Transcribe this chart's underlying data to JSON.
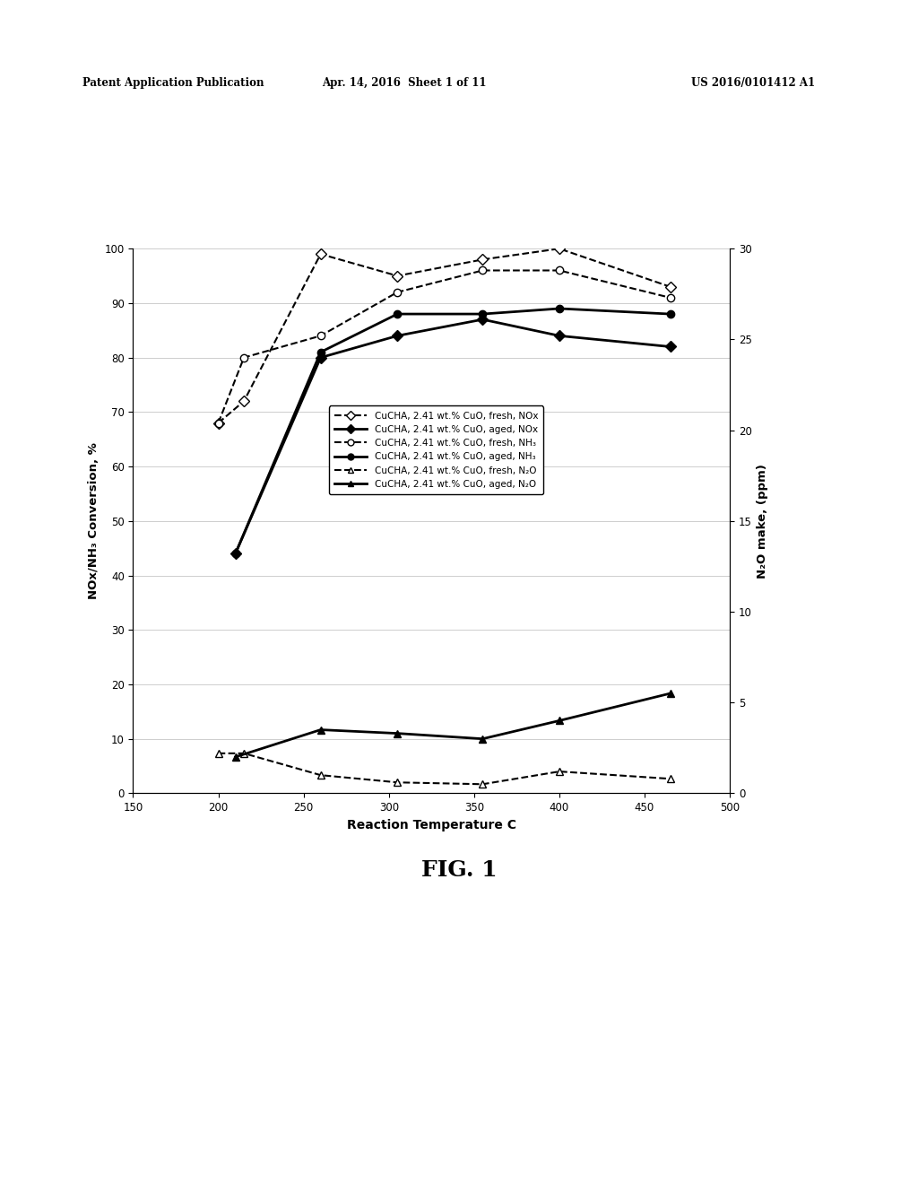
{
  "background_color": "#ffffff",
  "header_left": "Patent Application Publication",
  "header_mid": "Apr. 14, 2016  Sheet 1 of 11",
  "header_right": "US 2016/0101412 A1",
  "fig_label": "FIG. 1",
  "ylabel_left": "NOx/NH₃ Conversion, %",
  "ylabel_right": "N₂O make, (ppm)",
  "xlabel": "Reaction Temperature C",
  "xlim": [
    150,
    500
  ],
  "ylim_left": [
    0,
    100
  ],
  "ylim_right": [
    0,
    30
  ],
  "xticks": [
    150,
    200,
    250,
    300,
    350,
    400,
    450,
    500
  ],
  "yticks_left": [
    0,
    10,
    20,
    30,
    40,
    50,
    60,
    70,
    80,
    90,
    100
  ],
  "yticks_right": [
    0,
    5,
    10,
    15,
    20,
    25,
    30
  ],
  "series": [
    {
      "label": "CuCHA, 2.41 wt.% CuO, fresh, NOx",
      "x": [
        200,
        215,
        260,
        305,
        355,
        400,
        465
      ],
      "y": [
        68,
        72,
        99,
        95,
        98,
        100,
        93
      ],
      "linestyle": "--",
      "marker": "D",
      "filled": false,
      "linewidth": 1.5,
      "markersize": 6,
      "axis": "left"
    },
    {
      "label": "CuCHA, 2.41 wt.% CuO, aged, NOx",
      "x": [
        210,
        260,
        305,
        355,
        400,
        465
      ],
      "y": [
        44,
        80,
        84,
        87,
        84,
        82
      ],
      "linestyle": "-",
      "marker": "D",
      "filled": true,
      "linewidth": 2.0,
      "markersize": 6,
      "axis": "left"
    },
    {
      "label": "CuCHA, 2.41 wt.% CuO, fresh, NH₃",
      "x": [
        200,
        215,
        260,
        305,
        355,
        400,
        465
      ],
      "y": [
        68,
        80,
        84,
        92,
        96,
        96,
        91
      ],
      "linestyle": "--",
      "marker": "o",
      "filled": false,
      "linewidth": 1.5,
      "markersize": 6,
      "axis": "left"
    },
    {
      "label": "CuCHA, 2.41 wt.% CuO, aged, NH₃",
      "x": [
        210,
        260,
        305,
        355,
        400,
        465
      ],
      "y": [
        44,
        81,
        88,
        88,
        89,
        88
      ],
      "linestyle": "-",
      "marker": "o",
      "filled": true,
      "linewidth": 2.0,
      "markersize": 6,
      "axis": "left"
    },
    {
      "label": "CuCHA, 2.41 wt.% CuO, fresh, N₂O",
      "x": [
        200,
        215,
        260,
        305,
        355,
        400,
        465
      ],
      "y": [
        2.2,
        2.2,
        1.0,
        0.6,
        0.5,
        1.2,
        0.8
      ],
      "linestyle": "--",
      "marker": "^",
      "filled": false,
      "linewidth": 1.5,
      "markersize": 6,
      "axis": "right"
    },
    {
      "label": "CuCHA, 2.41 wt.% CuO, aged, N₂O",
      "x": [
        210,
        260,
        305,
        355,
        400,
        465
      ],
      "y": [
        2.0,
        3.5,
        3.3,
        3.0,
        4.0,
        5.5
      ],
      "linestyle": "-",
      "marker": "^",
      "filled": true,
      "linewidth": 2.0,
      "markersize": 6,
      "axis": "right"
    }
  ],
  "legend_labels": [
    "CuCHA, 2.41 wt.% CuO, fresh, NOx",
    "CuCHA, 2.41 wt.% CuO, aged, NOx",
    "CuCHA, 2.41 wt.% CuO, fresh, NH₃",
    "CuCHA, 2.41 wt.% CuO, aged, NH₃",
    "CuCHA, 2.41 wt.% CuO, fresh, N₂O",
    "CuCHA, 2.41 wt.% CuO, aged, N₂O"
  ]
}
